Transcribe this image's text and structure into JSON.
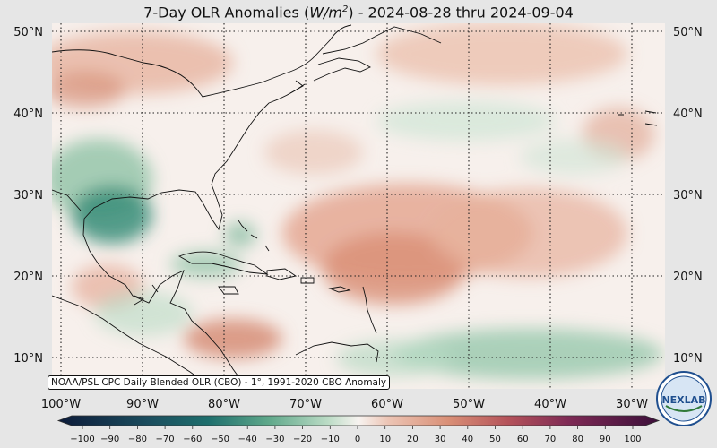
{
  "title": {
    "prefix": "7-Day OLR Anomalies (",
    "unit_base": "W/m",
    "unit_exp": "2",
    "suffix": ") - 2024-08-28 thru 2024-09-04"
  },
  "map": {
    "lon_labels": [
      "100°W",
      "90°W",
      "80°W",
      "70°W",
      "60°W",
      "50°W",
      "40°W",
      "30°W"
    ],
    "lat_labels": [
      "50°N",
      "40°N",
      "30°N",
      "20°N",
      "10°N"
    ],
    "lon_range": [
      -100,
      -30
    ],
    "lat_range": [
      7,
      52
    ],
    "gridlines": "dotted"
  },
  "source_label": "NOAA/PSL CPC Daily Blended OLR (CBO) - 1°, 1991-2020 CBO Anomaly",
  "colorbar": {
    "ticks": [
      "−100",
      "−90",
      "−80",
      "−70",
      "−60",
      "−50",
      "−40",
      "−30",
      "−20",
      "−10",
      "0",
      "10",
      "20",
      "30",
      "40",
      "50",
      "60",
      "70",
      "80",
      "90",
      "100"
    ],
    "range": [
      -100,
      100
    ],
    "colors": {
      "neg_extreme": "#0d1b3a",
      "neg_strong": "#1e6f6d",
      "neg_mid": "#5fa88a",
      "neg_weak": "#bcdcc6",
      "neutral": "#f7f3f0",
      "pos_weak": "#ecc4b4",
      "pos_mid": "#d98f76",
      "pos_strong": "#b4525a",
      "pos_extreme": "#3c0f3a"
    }
  },
  "logo": {
    "text": "NEXLAB"
  },
  "colors": {
    "background": "#e6e6e6",
    "map_base": "#f7f0ec",
    "coastline": "#111111"
  }
}
